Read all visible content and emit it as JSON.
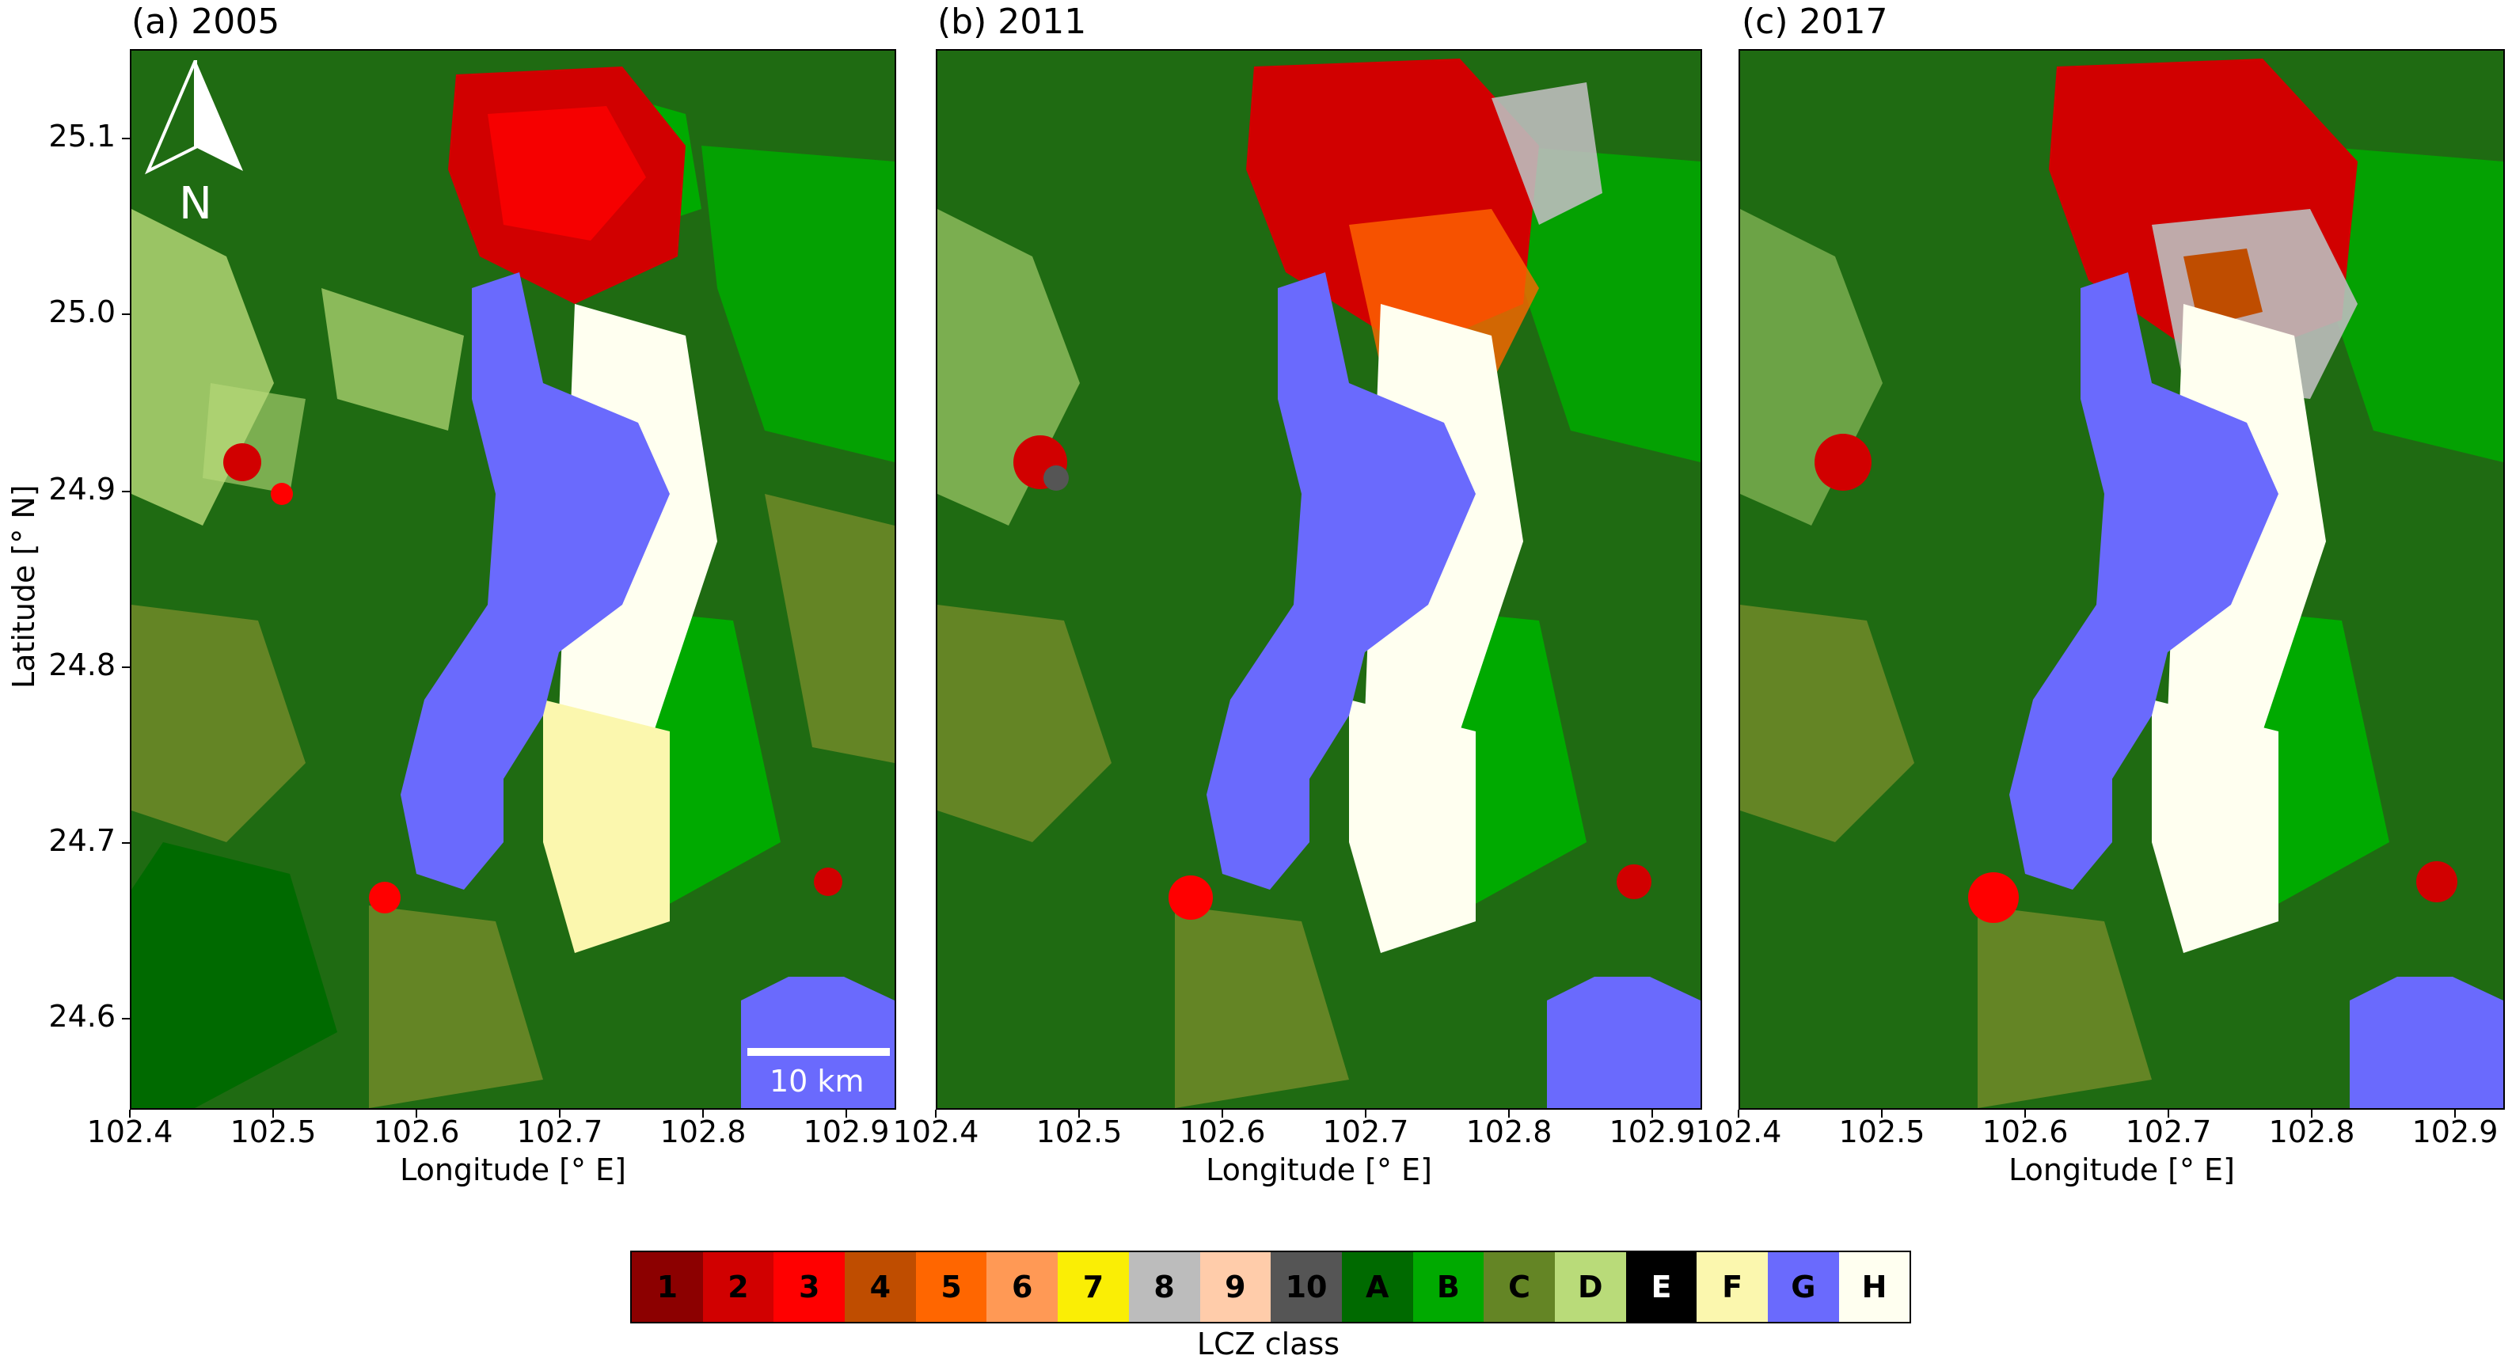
{
  "panels": [
    {
      "title": "(a) 2005"
    },
    {
      "title": "(b) 2011"
    },
    {
      "title": "(c) 2017"
    }
  ],
  "axes": {
    "ylabel": "Latitude [° N]",
    "xlabel": "Longitude [° E]",
    "yticks": [
      "25.1",
      "25.0",
      "24.9",
      "24.8",
      "24.7",
      "24.6"
    ],
    "xticks": [
      "102.4",
      "102.5",
      "102.6",
      "102.7",
      "102.8",
      "102.9"
    ]
  },
  "map_extras": {
    "north_label": "N",
    "scale_label": "10 km"
  },
  "legend": {
    "title": "LCZ class",
    "classes": [
      {
        "label": "1",
        "color": "#8c0000"
      },
      {
        "label": "2",
        "color": "#d10000"
      },
      {
        "label": "3",
        "color": "#ff0000"
      },
      {
        "label": "4",
        "color": "#bf4d00"
      },
      {
        "label": "5",
        "color": "#ff6600"
      },
      {
        "label": "6",
        "color": "#ff9955"
      },
      {
        "label": "7",
        "color": "#faee05"
      },
      {
        "label": "8",
        "color": "#bcbcbc"
      },
      {
        "label": "9",
        "color": "#ffccaa"
      },
      {
        "label": "10",
        "color": "#555555"
      },
      {
        "label": "A",
        "color": "#006a00"
      },
      {
        "label": "B",
        "color": "#00aa00"
      },
      {
        "label": "C",
        "color": "#648525"
      },
      {
        "label": "D",
        "color": "#b9db79"
      },
      {
        "label": "E",
        "color": "#000000"
      },
      {
        "label": "F",
        "color": "#fbf7ae"
      },
      {
        "label": "G",
        "color": "#6a6afd"
      },
      {
        "label": "H",
        "color": "#fffff0"
      }
    ]
  }
}
